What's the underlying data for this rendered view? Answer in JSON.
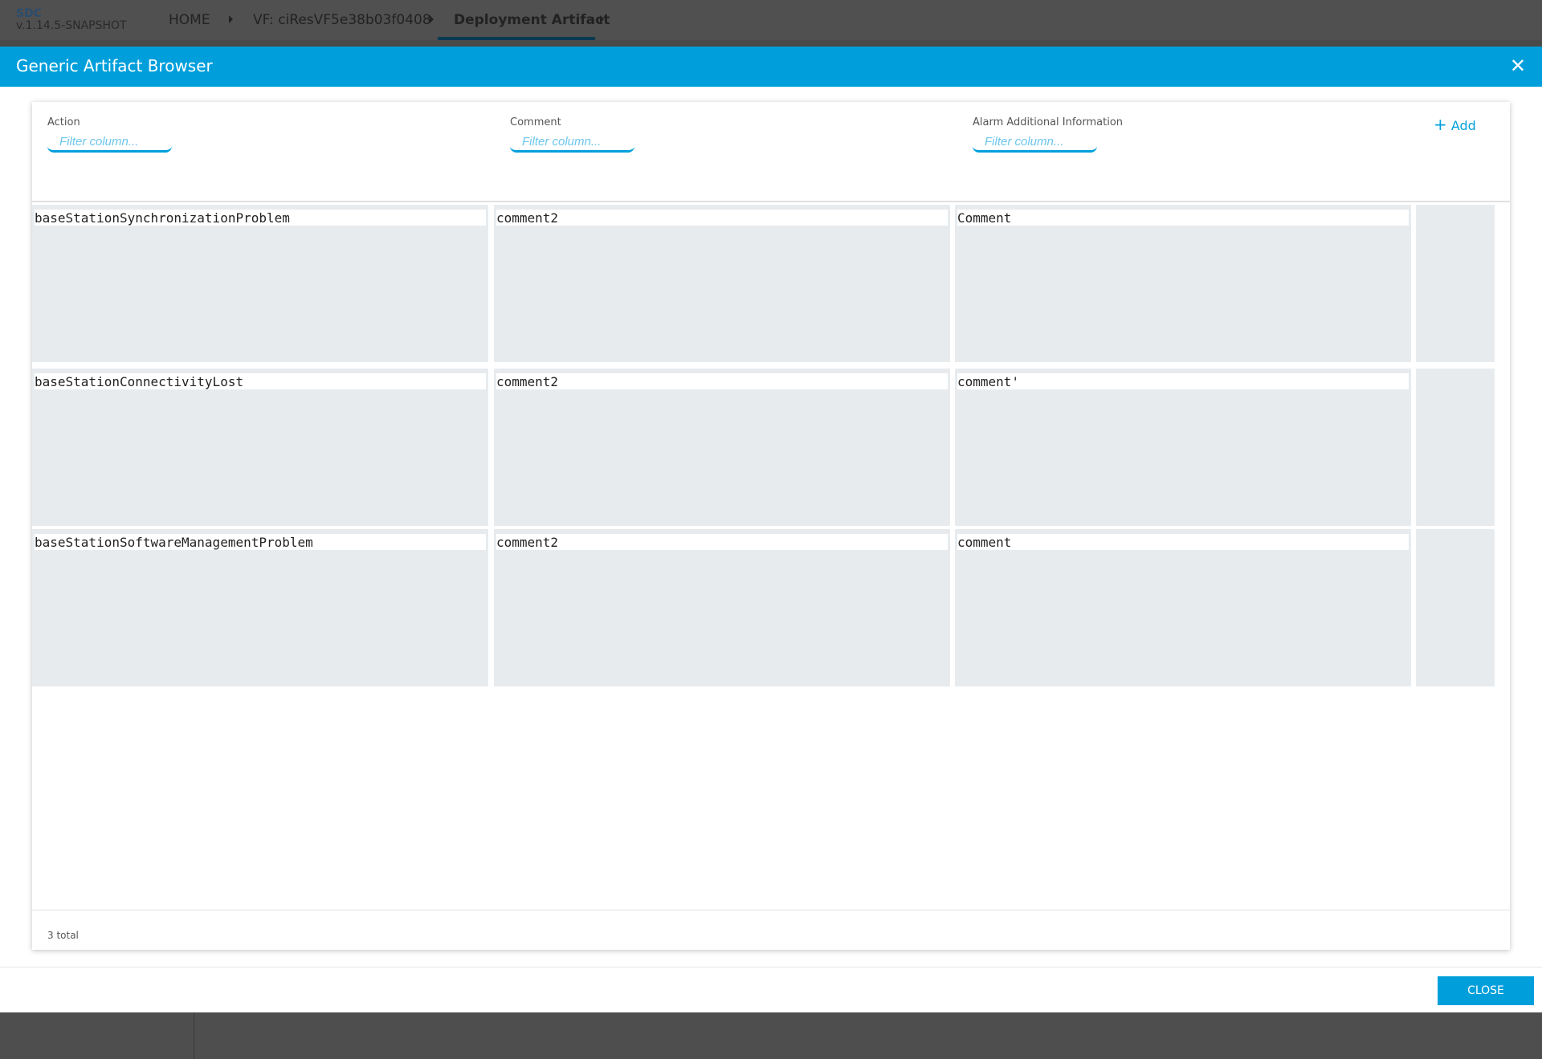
{
  "app": {
    "name": "SDC",
    "version": "v.1.14.5-SNAPSHOT"
  },
  "breadcrumb": [
    "HOME",
    "VF: ciResVF5e38b03f0408",
    "Deployment Artifact"
  ],
  "modal": {
    "title": "Generic Artifact Browser",
    "close_icon": "close-icon",
    "close_label": "CLOSE"
  },
  "columns": [
    {
      "label": "Action",
      "placeholder": "Filter column..."
    },
    {
      "label": "Comment",
      "placeholder": "Filter column..."
    },
    {
      "label": "Alarm Additional Information",
      "placeholder": "Filter column..."
    }
  ],
  "add_label": "Add",
  "rows": [
    [
      "baseStationSynchronizationProblem",
      "comment2",
      "Comment"
    ],
    [
      "baseStationConnectivityLost",
      "comment2",
      "comment'"
    ],
    [
      "baseStationSoftwareManagementProblem",
      "comment2",
      "comment"
    ]
  ],
  "footer": {
    "total": "3 total"
  },
  "colors": {
    "accent": "#009fdb",
    "topbar": "#505050"
  }
}
